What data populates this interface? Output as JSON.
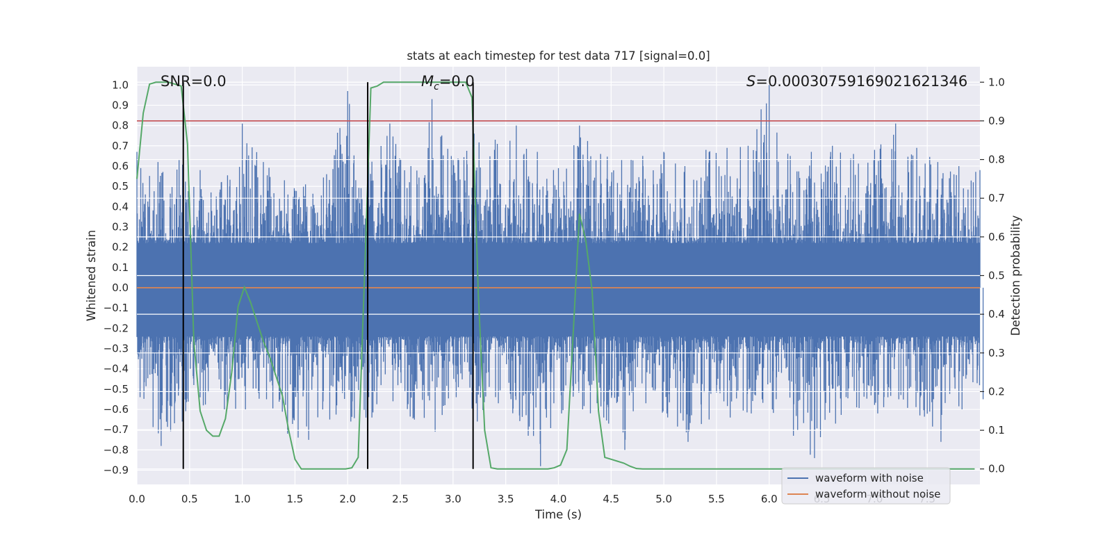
{
  "chart_data": {
    "type": "line",
    "title": "stats at each timestep for test data 717 [signal=0.0]",
    "xlabel": "Time (s)",
    "ylabel_left": "Whitened strain",
    "ylabel_right": "Detection probability",
    "xlim": [
      0.0,
      8.0
    ],
    "ylim_left": [
      -0.97,
      1.09
    ],
    "ylim_right": [
      -0.04,
      1.04
    ],
    "x_ticks": [
      0.0,
      0.5,
      1.0,
      1.5,
      2.0,
      2.5,
      3.0,
      3.5,
      4.0,
      4.5,
      5.0,
      5.5,
      6.0,
      6.5,
      7.0,
      7.5
    ],
    "x_tick_labels": [
      "0.0",
      "0.5",
      "1.0",
      "1.5",
      "2.0",
      "2.5",
      "3.0",
      "3.5",
      "4.0",
      "4.5",
      "5.0",
      "5.5",
      "6.0",
      "6.5",
      "7.0",
      "7.5"
    ],
    "y_left_ticks": [
      -0.9,
      -0.8,
      -0.7,
      -0.6,
      -0.5,
      -0.4,
      -0.3,
      -0.2,
      -0.1,
      0.0,
      0.1,
      0.2,
      0.3,
      0.4,
      0.5,
      0.6,
      0.7,
      0.8,
      0.9,
      1.0
    ],
    "y_left_tick_labels": [
      "−0.9",
      "−0.8",
      "−0.7",
      "−0.6",
      "−0.5",
      "−0.4",
      "−0.3",
      "−0.2",
      "−0.1",
      "0.0",
      "0.1",
      "0.2",
      "0.3",
      "0.4",
      "0.5",
      "0.6",
      "0.7",
      "0.8",
      "0.9",
      "1.0"
    ],
    "y_right_ticks": [
      0.0,
      0.1,
      0.2,
      0.3,
      0.4,
      0.5,
      0.6,
      0.7,
      0.8,
      0.9,
      1.0
    ],
    "y_right_tick_labels": [
      "0.0",
      "0.1",
      "0.2",
      "0.3",
      "0.4",
      "0.5",
      "0.6",
      "0.7",
      "0.8",
      "0.9",
      "1.0"
    ],
    "grid": true,
    "legend_position": "lower-right",
    "annotations": {
      "snr": "SNR=0.0",
      "mc_symbol": "M",
      "mc_subscript": "c",
      "mc_value": "=0.0",
      "s_symbol": "S",
      "s_value": "=0.00030759169021621346"
    },
    "series": [
      {
        "name": "waveform with noise",
        "axis": "left",
        "color": "#4c72b0",
        "envelope": {
          "x": [
            0.0,
            0.2,
            0.4,
            0.6,
            0.8,
            1.0,
            1.2,
            1.4,
            1.6,
            1.8,
            2.0,
            2.2,
            2.4,
            2.6,
            2.8,
            3.0,
            3.2,
            3.4,
            3.6,
            3.8,
            4.0,
            4.2,
            4.4,
            4.6,
            4.8,
            5.0,
            5.2,
            5.4,
            5.6,
            5.8,
            6.0,
            6.2,
            6.4,
            6.6,
            6.8,
            7.0,
            7.2,
            7.4,
            7.6,
            7.8,
            8.0
          ],
          "max": [
            0.67,
            0.62,
            0.63,
            0.58,
            0.52,
            0.81,
            0.62,
            0.53,
            0.51,
            0.56,
            0.97,
            0.62,
            0.81,
            0.6,
            0.93,
            0.63,
            0.76,
            0.73,
            0.8,
            0.67,
            0.59,
            0.8,
            0.66,
            0.63,
            0.65,
            0.67,
            0.6,
            0.68,
            0.69,
            0.7,
            1.0,
            0.65,
            0.67,
            0.7,
            0.66,
            0.68,
            0.81,
            0.69,
            0.62,
            0.6,
            0.58
          ],
          "min": [
            -0.54,
            -0.78,
            -0.66,
            -0.58,
            -0.6,
            -0.6,
            -0.55,
            -0.72,
            -0.75,
            -0.65,
            -0.66,
            -0.64,
            -0.56,
            -0.64,
            -0.71,
            -0.54,
            -0.66,
            -0.57,
            -0.63,
            -0.88,
            -0.62,
            -0.6,
            -0.64,
            -0.8,
            -0.57,
            -0.62,
            -0.76,
            -0.65,
            -0.64,
            -0.62,
            -0.6,
            -0.73,
            -0.84,
            -0.67,
            -0.59,
            -0.62,
            -0.55,
            -0.63,
            -0.76,
            -0.6,
            -0.55
          ]
        }
      },
      {
        "name": "waveform without noise",
        "axis": "left",
        "color": "#dd8452",
        "x": [
          0.0,
          8.0
        ],
        "y": [
          0.0,
          0.0
        ]
      },
      {
        "name": "",
        "axis": "right",
        "color": "#55a868",
        "x": [
          0.0,
          0.06,
          0.12,
          0.18,
          0.24,
          0.3,
          0.36,
          0.42,
          0.48,
          0.54,
          0.6,
          0.66,
          0.72,
          0.78,
          0.84,
          0.9,
          0.96,
          1.02,
          1.08,
          1.14,
          1.2,
          1.26,
          1.32,
          1.38,
          1.44,
          1.5,
          1.56,
          1.62,
          1.68,
          1.74,
          1.8,
          1.86,
          1.92,
          1.98,
          2.04,
          2.1,
          2.16,
          2.22,
          2.28,
          2.34,
          2.4,
          2.46,
          2.52,
          2.58,
          2.64,
          2.7,
          2.76,
          2.82,
          2.88,
          2.94,
          3.0,
          3.06,
          3.12,
          3.18,
          3.24,
          3.3,
          3.36,
          3.42,
          3.48,
          3.54,
          3.6,
          3.66,
          3.72,
          3.78,
          3.84,
          3.9,
          3.96,
          4.02,
          4.08,
          4.14,
          4.2,
          4.26,
          4.32,
          4.38,
          4.44,
          4.5,
          4.56,
          4.62,
          4.68,
          4.74,
          4.8,
          5.0,
          5.5,
          6.0,
          6.5,
          7.0,
          7.5,
          7.95
        ],
        "y": [
          0.75,
          0.92,
          0.995,
          1.0,
          1.0,
          1.0,
          0.995,
          0.99,
          0.84,
          0.33,
          0.15,
          0.1,
          0.085,
          0.085,
          0.13,
          0.25,
          0.42,
          0.47,
          0.43,
          0.38,
          0.33,
          0.29,
          0.24,
          0.19,
          0.1,
          0.025,
          0.0,
          0.0,
          0.0,
          0.0,
          0.0,
          0.0,
          0.0,
          0.0,
          0.003,
          0.03,
          0.5,
          0.985,
          0.99,
          1.0,
          1.0,
          1.0,
          1.0,
          1.0,
          1.0,
          1.0,
          1.0,
          1.0,
          1.0,
          1.0,
          1.0,
          1.0,
          1.0,
          0.96,
          0.45,
          0.1,
          0.003,
          0.0,
          0.0,
          0.0,
          0.0,
          0.0,
          0.0,
          0.0,
          0.0,
          0.0,
          0.003,
          0.01,
          0.05,
          0.35,
          0.66,
          0.59,
          0.46,
          0.15,
          0.03,
          0.025,
          0.02,
          0.015,
          0.007,
          0.001,
          0.0,
          0.0,
          0.0,
          0.0,
          0.0,
          0.0,
          0.0,
          0.0
        ]
      }
    ],
    "horizontal_lines": [
      {
        "axis": "right",
        "y": 0.9,
        "color": "#c44e52"
      }
    ],
    "vertical_lines": [
      {
        "x": 0.44,
        "ymin": 0.0,
        "ymax": 1.0,
        "color": "#000000"
      },
      {
        "x": 2.19,
        "ymin": 0.0,
        "ymax": 1.0,
        "color": "#000000"
      },
      {
        "x": 3.19,
        "ymin": 0.0,
        "ymax": 1.0,
        "color": "#000000"
      }
    ],
    "colors": {
      "plot_background": "#eaeaf2",
      "grid": "#ffffff"
    }
  }
}
